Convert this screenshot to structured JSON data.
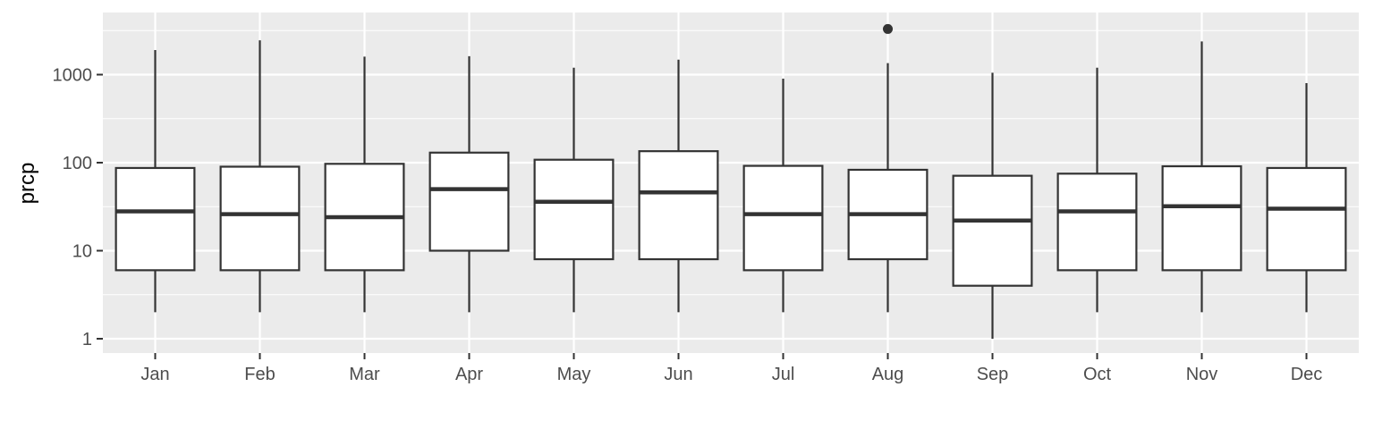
{
  "chart_data": {
    "type": "boxplot",
    "title": "",
    "xlabel": "",
    "ylabel": "prcp",
    "y_scale": "log10",
    "ylim": [
      0.7,
      4500
    ],
    "y_ticks": [
      1,
      10,
      100,
      1000
    ],
    "y_tick_labels": [
      "1",
      "10",
      "100",
      "1000"
    ],
    "grid": true,
    "legend": "none",
    "categories": [
      "Jan",
      "Feb",
      "Mar",
      "Apr",
      "May",
      "Jun",
      "Jul",
      "Aug",
      "Sep",
      "Oct",
      "Nov",
      "Dec"
    ],
    "boxes": [
      {
        "lower_whisker": 2,
        "q1": 6,
        "median": 28,
        "q3": 87,
        "upper_whisker": 1900,
        "outliers": []
      },
      {
        "lower_whisker": 2,
        "q1": 6,
        "median": 26,
        "q3": 90,
        "upper_whisker": 2450,
        "outliers": []
      },
      {
        "lower_whisker": 2,
        "q1": 6,
        "median": 24,
        "q3": 97,
        "upper_whisker": 1600,
        "outliers": []
      },
      {
        "lower_whisker": 2,
        "q1": 10,
        "median": 50,
        "q3": 130,
        "upper_whisker": 1620,
        "outliers": []
      },
      {
        "lower_whisker": 2,
        "q1": 8,
        "median": 36,
        "q3": 108,
        "upper_whisker": 1200,
        "outliers": []
      },
      {
        "lower_whisker": 2,
        "q1": 8,
        "median": 46,
        "q3": 135,
        "upper_whisker": 1480,
        "outliers": []
      },
      {
        "lower_whisker": 2,
        "q1": 6,
        "median": 26,
        "q3": 92,
        "upper_whisker": 900,
        "outliers": []
      },
      {
        "lower_whisker": 2,
        "q1": 8,
        "median": 26,
        "q3": 83,
        "upper_whisker": 1350,
        "outliers": [
          3300
        ]
      },
      {
        "lower_whisker": 1,
        "q1": 4,
        "median": 22,
        "q3": 71,
        "upper_whisker": 1050,
        "outliers": []
      },
      {
        "lower_whisker": 2,
        "q1": 6,
        "median": 28,
        "q3": 75,
        "upper_whisker": 1200,
        "outliers": []
      },
      {
        "lower_whisker": 2,
        "q1": 6,
        "median": 32,
        "q3": 91,
        "upper_whisker": 2380,
        "outliers": []
      },
      {
        "lower_whisker": 2,
        "q1": 6,
        "median": 30,
        "q3": 87,
        "upper_whisker": 800,
        "outliers": []
      }
    ],
    "colors": {
      "panel_background": "#ebebeb",
      "grid": "#ffffff",
      "box_fill": "#ffffff",
      "box_stroke": "#333333",
      "tick_text": "#4d4d4d",
      "title_text": "#000000"
    }
  }
}
